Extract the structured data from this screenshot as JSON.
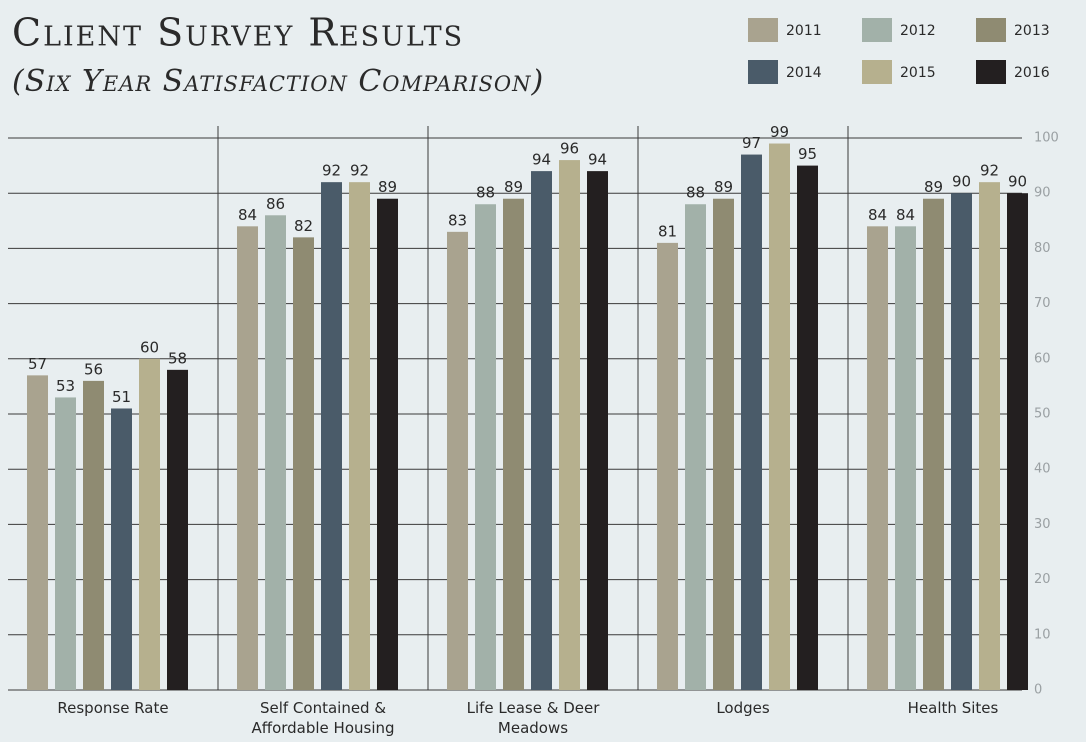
{
  "chart_data": {
    "type": "bar",
    "title": "Client Survey Results",
    "subtitle": "(Six Year Satisfaction Comparison)",
    "categories": [
      "Response Rate",
      "Self Contained & Affordable Housing",
      "Life Lease & Deer Meadows",
      "Lodges",
      "Health Sites"
    ],
    "series": [
      {
        "name": "2011",
        "color": "#a9a38f",
        "values": [
          57,
          84,
          83,
          81,
          84
        ]
      },
      {
        "name": "2012",
        "color": "#a2b1a9",
        "values": [
          53,
          86,
          88,
          88,
          84
        ]
      },
      {
        "name": "2013",
        "color": "#8f8b72",
        "values": [
          56,
          82,
          89,
          89,
          89
        ]
      },
      {
        "name": "2014",
        "color": "#4a5b69",
        "values": [
          51,
          92,
          94,
          97,
          90
        ]
      },
      {
        "name": "2015",
        "color": "#b6b08e",
        "values": [
          60,
          92,
          96,
          99,
          92
        ]
      },
      {
        "name": "2016",
        "color": "#231f20",
        "values": [
          58,
          89,
          94,
          95,
          90
        ]
      }
    ],
    "ylim": [
      0,
      100
    ],
    "yticks": [
      0,
      10,
      20,
      30,
      40,
      50,
      60,
      70,
      80,
      90,
      100
    ],
    "grid": true
  }
}
